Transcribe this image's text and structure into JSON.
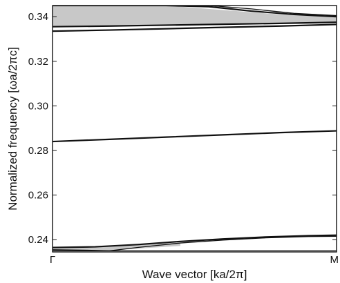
{
  "chart_data": {
    "type": "line",
    "xlabel": "Wave vector [ka/2π]",
    "ylabel": "Normalized frequency [ωa/2πc]",
    "x_tick_labels": [
      "Γ",
      "M"
    ],
    "x": [
      0,
      1
    ],
    "xlim": [
      0,
      1
    ],
    "ylim": [
      0.2345,
      0.345
    ],
    "y_ticks": [
      0.24,
      0.26,
      0.28,
      0.3,
      0.32,
      0.34
    ],
    "y_tick_labels": [
      "0.24",
      "0.26",
      "0.28",
      "0.30",
      "0.32",
      "0.34"
    ],
    "grid": false,
    "legend": "none",
    "bands": [
      {
        "x": [
          0,
          0.15,
          0.3,
          0.45,
          0.6,
          0.75,
          0.9,
          1
        ],
        "y": [
          0.235,
          0.235,
          0.235,
          0.235,
          0.235,
          0.235,
          0.235,
          0.235
        ],
        "style": "thin"
      },
      {
        "x": [
          0,
          0.15,
          0.3,
          0.45,
          0.6,
          0.75,
          0.9,
          1
        ],
        "y": [
          0.2365,
          0.2368,
          0.2378,
          0.2392,
          0.2403,
          0.2412,
          0.2418,
          0.242
        ],
        "style": "thick"
      },
      {
        "x": [
          0,
          0.15,
          0.2,
          0.3,
          0.45,
          0.6,
          0.75,
          0.9,
          1
        ],
        "y": [
          0.2355,
          0.2352,
          0.235,
          0.2365,
          0.2385,
          0.2398,
          0.2408,
          0.2414,
          0.2415
        ],
        "style": "thin"
      },
      {
        "x": [
          0,
          0.2,
          0.4,
          0.6,
          0.8,
          1
        ],
        "y": [
          0.284,
          0.285,
          0.286,
          0.287,
          0.288,
          0.2888
        ],
        "style": "thick"
      },
      {
        "x": [
          0,
          0.2,
          0.4,
          0.6,
          0.8,
          1
        ],
        "y": [
          0.3335,
          0.334,
          0.3346,
          0.3352,
          0.3358,
          0.3365
        ],
        "style": "thick"
      },
      {
        "x": [
          0,
          0.2,
          0.4,
          0.6,
          0.8,
          1
        ],
        "y": [
          0.3355,
          0.3358,
          0.3362,
          0.3366,
          0.337,
          0.3375
        ],
        "style": "thick"
      },
      {
        "x": [
          0,
          0.4,
          0.55,
          0.7,
          0.85,
          1
        ],
        "y": [
          0.345,
          0.345,
          0.3445,
          0.3425,
          0.341,
          0.34
        ],
        "style": "thick"
      },
      {
        "x": [
          0.55,
          0.7,
          0.85,
          1
        ],
        "y": [
          0.345,
          0.3435,
          0.3415,
          0.3405
        ],
        "style": "thin"
      }
    ],
    "shaded_regions": [
      {
        "x": [
          0,
          0.2,
          0.4,
          0.6,
          0.8,
          1
        ],
        "y_lower": [
          0.3355,
          0.3358,
          0.3362,
          0.3366,
          0.337,
          0.3375
        ],
        "y_upper": [
          0.345,
          0.345,
          0.345,
          0.343,
          0.341,
          0.34
        ]
      },
      {
        "x": [
          0,
          0.1,
          0.2,
          0.3,
          0.45
        ],
        "y_lower": [
          0.235,
          0.235,
          0.235,
          0.236,
          0.2372
        ],
        "y_upper": [
          0.2365,
          0.2367,
          0.2372,
          0.2378,
          0.2387
        ]
      }
    ],
    "colors": {
      "band": "#111111",
      "shade": "#c8c8c8",
      "frame": "#111111"
    }
  }
}
